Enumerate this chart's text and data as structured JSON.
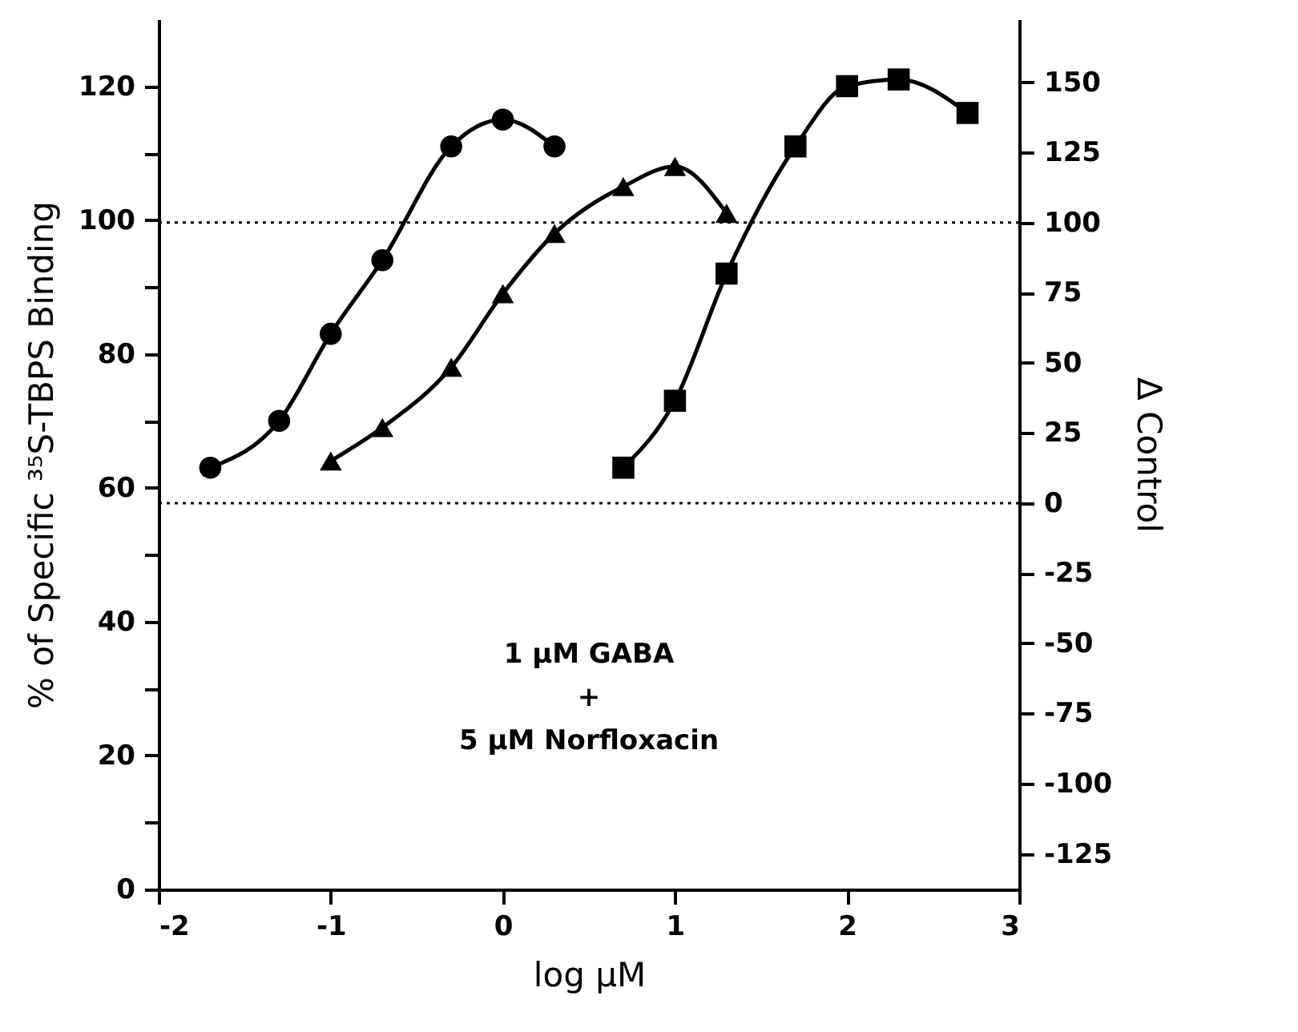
{
  "chart_data": {
    "type": "line",
    "xlabel": "log μM",
    "ylabel": "% of Specific ³⁵S-TBPS Binding",
    "y2label": "Δ Control",
    "xlim": [
      -2,
      3
    ],
    "xticks": [
      -2,
      -1,
      0,
      1,
      2,
      3
    ],
    "ylim": [
      0,
      130
    ],
    "yticks": [
      0,
      {
        "value": 10,
        "label": null
      },
      20,
      {
        "value": 30,
        "label": null
      },
      40,
      {
        "value": 50,
        "label": null
      },
      60,
      {
        "value": 70,
        "label": null
      },
      80,
      {
        "value": 90,
        "label": null
      },
      100,
      {
        "value": 110,
        "label": null
      },
      120
    ],
    "y2lim": [
      -137.7,
      172.5
    ],
    "y2ticks": [
      -125,
      -100,
      -75,
      -50,
      -25,
      0,
      25,
      50,
      75,
      100,
      125,
      150
    ],
    "grid": false,
    "line_style": "solid",
    "series": [
      {
        "color": "#000000",
        "marker": "circle",
        "x": [
          -1.7,
          -1.3,
          -1,
          -0.7,
          -0.3,
          0,
          0.3
        ],
        "values": [
          63,
          70,
          83,
          94,
          111,
          115,
          111
        ]
      },
      {
        "color": "#000000",
        "marker": "triangle",
        "x": [
          -1,
          -0.7,
          -0.3,
          0,
          0.3,
          0.7,
          1,
          1.3
        ],
        "values": [
          64,
          69,
          78,
          89,
          98,
          105,
          108,
          101
        ]
      },
      {
        "color": "#000000",
        "marker": "square",
        "x": [
          0.7,
          1,
          1.3,
          1.7,
          2,
          2.3,
          2.7
        ],
        "values": [
          63,
          73,
          92,
          111,
          120,
          121,
          116
        ]
      }
    ],
    "ref_lines": [
      {
        "axis": "y2",
        "value": 100,
        "line_style": "dotted",
        "color": "#000000"
      },
      {
        "axis": "y2",
        "value": 0,
        "line_style": "dotted",
        "color": "#000000"
      }
    ],
    "annotations": [
      "1 μM GABA\n+\n5 μM Norfloxacin"
    ]
  }
}
